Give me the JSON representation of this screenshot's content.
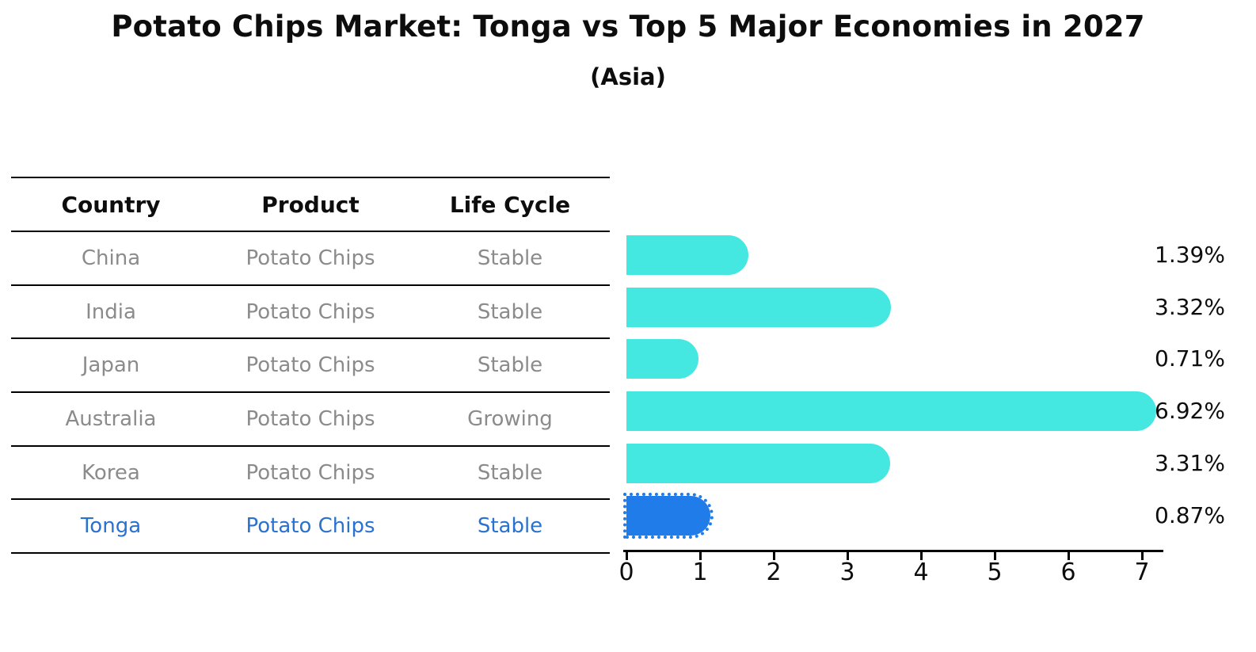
{
  "title": "Potato Chips Market: Tonga vs Top 5 Major Economies in 2027",
  "subtitle": "(Asia)",
  "table": {
    "headers": [
      "Country",
      "Product",
      "Life Cycle"
    ],
    "rows": [
      {
        "country": "China",
        "product": "Potato Chips",
        "life_cycle": "Stable",
        "highlight": false
      },
      {
        "country": "India",
        "product": "Potato Chips",
        "life_cycle": "Stable",
        "highlight": false
      },
      {
        "country": "Japan",
        "product": "Potato Chips",
        "life_cycle": "Stable",
        "highlight": false
      },
      {
        "country": "Australia",
        "product": "Potato Chips",
        "life_cycle": "Growing",
        "highlight": false
      },
      {
        "country": "Korea",
        "product": "Potato Chips",
        "life_cycle": "Stable",
        "highlight": false
      },
      {
        "country": "Tonga",
        "product": "Potato Chips",
        "life_cycle": "Stable",
        "highlight": true
      }
    ]
  },
  "chart_data": {
    "type": "bar",
    "orientation": "horizontal",
    "title": "Potato Chips Market: Tonga vs Top 5 Major Economies in 2027 (Asia)",
    "categories": [
      "China",
      "India",
      "Japan",
      "Australia",
      "Korea",
      "Tonga"
    ],
    "values": [
      1.39,
      3.32,
      0.71,
      6.92,
      3.31,
      0.87
    ],
    "value_labels": [
      "1.39%",
      "3.32%",
      "0.71%",
      "6.92%",
      "3.31%",
      "0.87%"
    ],
    "xlabel": "",
    "ylabel": "",
    "xlim": [
      0,
      7.3
    ],
    "xticks": [
      0,
      1,
      2,
      3,
      4,
      5,
      6,
      7
    ],
    "xtick_labels": [
      "0",
      "1",
      "2",
      "3",
      "4",
      "5",
      "6",
      "7"
    ],
    "grid": false,
    "legend": false,
    "highlight_index": 5
  },
  "colors": {
    "bar": "#45e7e1",
    "highlight_bar": "#1f7ce9",
    "highlight_text": "#2a72cf",
    "table_text": "#8b8b8b",
    "heading_text": "#0d0d0d",
    "line": "#000000"
  }
}
